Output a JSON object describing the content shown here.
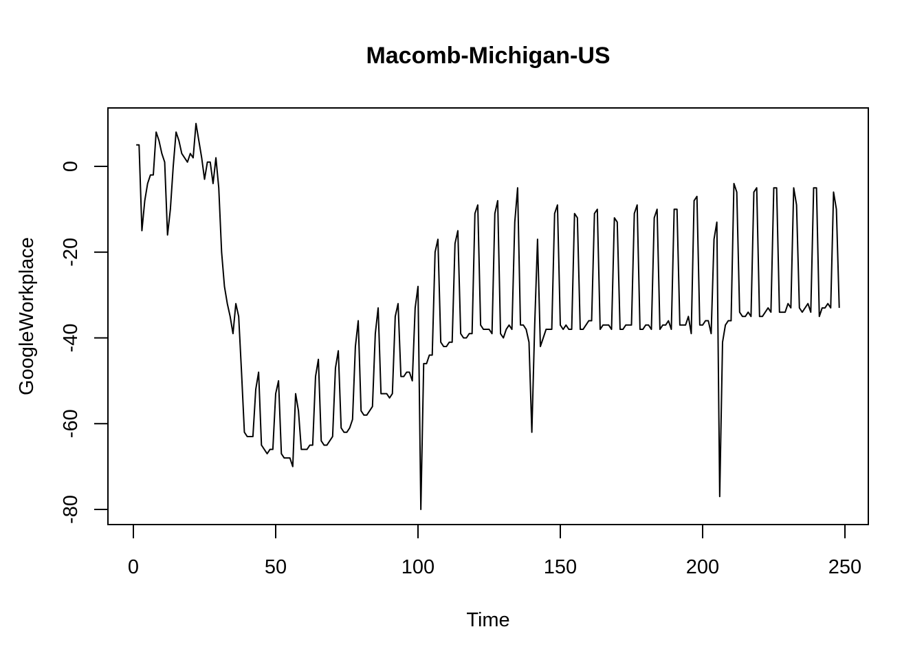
{
  "chart_data": {
    "type": "line",
    "title": "Macomb-Michigan-US",
    "xlabel": "Time",
    "ylabel": "GoogleWorkplace",
    "xlim": [
      0,
      250
    ],
    "ylim": [
      -80,
      10
    ],
    "xticks": [
      0,
      50,
      100,
      150,
      200,
      250
    ],
    "yticks": [
      0,
      -20,
      -40,
      -60,
      -80
    ],
    "grid": false,
    "legend": "none",
    "line_color": "#000000",
    "series": [
      {
        "x": [
          1,
          2,
          3,
          4,
          5,
          6,
          7,
          8,
          9,
          10,
          11,
          12,
          13,
          14,
          15,
          16,
          17,
          18,
          19,
          20,
          21,
          22,
          23,
          24,
          25,
          26,
          27,
          28,
          29,
          30,
          31,
          32,
          33,
          34,
          35,
          36,
          37,
          38,
          39,
          40,
          41,
          42,
          43,
          44,
          45,
          46,
          47,
          48,
          49,
          50,
          51,
          52,
          53,
          54,
          55,
          56,
          57,
          58,
          59,
          60,
          61,
          62,
          63,
          64,
          65,
          66,
          67,
          68,
          69,
          70,
          71,
          72,
          73,
          74,
          75,
          76,
          77,
          78,
          79,
          80,
          81,
          82,
          83,
          84,
          85,
          86,
          87,
          88,
          89,
          90,
          91,
          92,
          93,
          94,
          95,
          96,
          97,
          98,
          99,
          100,
          101,
          102,
          103,
          104,
          105,
          106,
          107,
          108,
          109,
          110,
          111,
          112,
          113,
          114,
          115,
          116,
          117,
          118,
          119,
          120,
          121,
          122,
          123,
          124,
          125,
          126,
          127,
          128,
          129,
          130,
          131,
          132,
          133,
          134,
          135,
          136,
          137,
          138,
          139,
          140,
          141,
          142,
          143,
          144,
          145,
          146,
          147,
          148,
          149,
          150,
          151,
          152,
          153,
          154,
          155,
          156,
          157,
          158,
          159,
          160,
          161,
          162,
          163,
          164,
          165,
          166,
          167,
          168,
          169,
          170,
          171,
          172,
          173,
          174,
          175,
          176,
          177,
          178,
          179,
          180,
          181,
          182,
          183,
          184,
          185,
          186,
          187,
          188,
          189,
          190,
          191,
          192,
          193,
          194,
          195,
          196,
          197,
          198,
          199,
          200,
          201,
          202,
          203,
          204,
          205,
          206,
          207,
          208,
          209,
          210,
          211,
          212,
          213,
          214,
          215,
          216,
          217,
          218,
          219,
          220,
          221,
          222,
          223,
          224,
          225,
          226,
          227,
          228,
          229,
          230,
          231,
          232,
          233,
          234,
          235,
          236,
          237,
          238,
          239,
          240,
          241,
          242,
          243,
          244,
          245,
          246,
          247,
          248
        ],
        "y": [
          5,
          5,
          -15,
          -8,
          -4,
          -2,
          -2,
          8,
          6,
          3,
          1,
          -16,
          -10,
          0,
          8,
          6,
          3,
          2,
          1,
          3,
          2,
          10,
          6,
          2,
          -3,
          1,
          1,
          -4,
          2,
          -5,
          -20,
          -28,
          -32,
          -35,
          -39,
          -32,
          -35,
          -48,
          -62,
          -63,
          -63,
          -63,
          -52,
          -48,
          -65,
          -66,
          -67,
          -66,
          -66,
          -53,
          -50,
          -67,
          -68,
          -68,
          -68,
          -70,
          -53,
          -57,
          -66,
          -66,
          -66,
          -65,
          -65,
          -49,
          -45,
          -64,
          -65,
          -65,
          -64,
          -63,
          -47,
          -43,
          -61,
          -62,
          -62,
          -61,
          -59,
          -42,
          -36,
          -57,
          -58,
          -58,
          -57,
          -56,
          -39,
          -33,
          -53,
          -53,
          -53,
          -54,
          -53,
          -35,
          -32,
          -49,
          -49,
          -48,
          -48,
          -50,
          -33,
          -28,
          -80,
          -46,
          -46,
          -44,
          -44,
          -20,
          -17,
          -41,
          -42,
          -42,
          -41,
          -41,
          -18,
          -15,
          -39,
          -40,
          -40,
          -39,
          -39,
          -11,
          -9,
          -37,
          -38,
          -38,
          -38,
          -39,
          -11,
          -8,
          -39,
          -40,
          -38,
          -37,
          -38,
          -13,
          -5,
          -37,
          -37,
          -38,
          -41,
          -62,
          -37,
          -17,
          -42,
          -40,
          -38,
          -38,
          -38,
          -11,
          -9,
          -37,
          -38,
          -37,
          -38,
          -38,
          -11,
          -12,
          -38,
          -38,
          -37,
          -36,
          -36,
          -11,
          -10,
          -38,
          -37,
          -37,
          -37,
          -38,
          -12,
          -13,
          -38,
          -38,
          -37,
          -37,
          -37,
          -11,
          -9,
          -38,
          -38,
          -37,
          -37,
          -38,
          -12,
          -10,
          -38,
          -37,
          -37,
          -36,
          -38,
          -10,
          -10,
          -37,
          -37,
          -37,
          -35,
          -39,
          -8,
          -7,
          -37,
          -37,
          -36,
          -36,
          -39,
          -17,
          -13,
          -77,
          -41,
          -37,
          -36,
          -36,
          -4,
          -6,
          -34,
          -35,
          -35,
          -34,
          -35,
          -6,
          -5,
          -35,
          -35,
          -34,
          -33,
          -34,
          -5,
          -5,
          -34,
          -34,
          -34,
          -32,
          -33,
          -5,
          -9,
          -33,
          -34,
          -33,
          -32,
          -34,
          -5,
          -5,
          -35,
          -33,
          -33,
          -32,
          -33,
          -6,
          -10,
          -33
        ]
      }
    ]
  }
}
